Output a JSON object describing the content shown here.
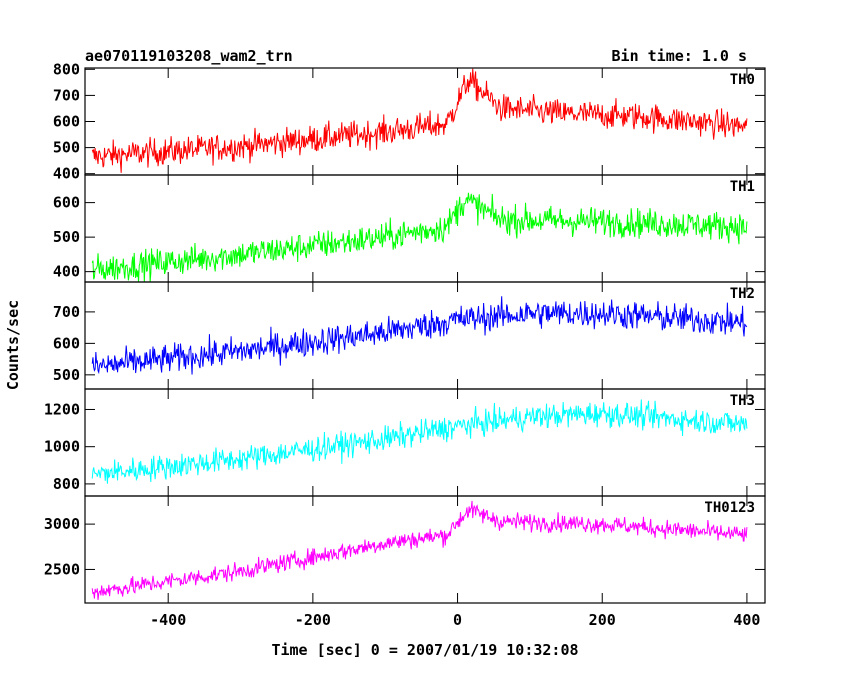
{
  "header": {
    "title": "ae070119103208_wam2_trn",
    "bin_time": "Bin time: 1.0 s"
  },
  "chart_data": {
    "type": "line",
    "title": "ae070119103208_wam2_trn",
    "subtitle": "Bin time: 1.0 s",
    "xlabel": "Time [sec] 0 = 2007/01/19 10:32:08",
    "ylabel": "Counts/sec",
    "xlim": [
      -515,
      425
    ],
    "x_range": [
      -505,
      400
    ],
    "xticks": [
      -400,
      -200,
      0,
      200,
      400
    ],
    "grid": false,
    "colors": {
      "TH0": "#ff0000",
      "TH1": "#00ff00",
      "TH2": "#0000ff",
      "TH3": "#00ffff",
      "TH0123": "#ff00ff"
    },
    "panels": [
      {
        "name": "TH0",
        "color": "#ff0000",
        "ylim": [
          395,
          805
        ],
        "yticks": [
          400,
          500,
          600,
          700,
          800
        ],
        "trend": [
          [
            -505,
            465
          ],
          [
            -300,
            505
          ],
          [
            -100,
            560
          ],
          [
            -15,
            590
          ],
          [
            15,
            760
          ],
          [
            60,
            650
          ],
          [
            150,
            630
          ],
          [
            250,
            620
          ],
          [
            400,
            580
          ]
        ],
        "noise": 38
      },
      {
        "name": "TH1",
        "color": "#00ff00",
        "ylim": [
          370,
          680
        ],
        "yticks": [
          400,
          500,
          600
        ],
        "trend": [
          [
            -505,
            405
          ],
          [
            -300,
            450
          ],
          [
            -100,
            500
          ],
          [
            -15,
            530
          ],
          [
            10,
            610
          ],
          [
            60,
            550
          ],
          [
            200,
            545
          ],
          [
            400,
            530
          ]
        ],
        "noise": 30
      },
      {
        "name": "TH2",
        "color": "#0000ff",
        "ylim": [
          455,
          795
        ],
        "yticks": [
          500,
          600,
          700
        ],
        "trend": [
          [
            -505,
            525
          ],
          [
            -300,
            575
          ],
          [
            -100,
            635
          ],
          [
            0,
            675
          ],
          [
            100,
            695
          ],
          [
            200,
            695
          ],
          [
            400,
            665
          ]
        ],
        "noise": 33
      },
      {
        "name": "TH3",
        "color": "#00ffff",
        "ylim": [
          735,
          1310
        ],
        "yticks": [
          800,
          1000,
          1200
        ],
        "trend": [
          [
            -505,
            850
          ],
          [
            -300,
            935
          ],
          [
            -100,
            1040
          ],
          [
            0,
            1110
          ],
          [
            100,
            1160
          ],
          [
            200,
            1180
          ],
          [
            400,
            1120
          ]
        ],
        "noise": 48
      },
      {
        "name": "TH0123",
        "color": "#ff00ff",
        "ylim": [
          2130,
          3310
        ],
        "yticks": [
          2500,
          3000
        ],
        "trend": [
          [
            -505,
            2250
          ],
          [
            -300,
            2480
          ],
          [
            -100,
            2790
          ],
          [
            -15,
            2880
          ],
          [
            15,
            3160
          ],
          [
            60,
            3030
          ],
          [
            200,
            3000
          ],
          [
            400,
            2880
          ]
        ],
        "noise": 70
      }
    ]
  }
}
